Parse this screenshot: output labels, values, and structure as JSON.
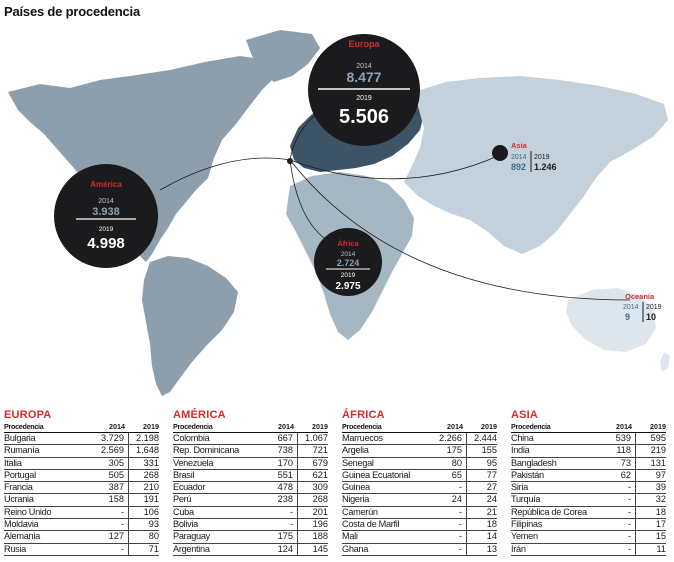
{
  "title": "Países de procedencia",
  "colors": {
    "europe": "#3d5466",
    "america": "#8d9fad",
    "africa": "#a6b7c4",
    "asia": "#c3d1dc",
    "oceania": "#dde6ed",
    "bubble": "#1b1b1d",
    "accent": "#d62b2b"
  },
  "bubbles": {
    "europa": {
      "name": "Europa",
      "label_2014": "2014",
      "value_2014": "8.477",
      "label_2019": "2019",
      "value_2019": "5.506"
    },
    "america": {
      "name": "América",
      "label_2014": "2014",
      "value_2014": "3.938",
      "label_2019": "2019",
      "value_2019": "4.998"
    },
    "africa": {
      "name": "África",
      "label_2014": "2014",
      "value_2014": "2.724",
      "label_2019": "2019",
      "value_2019": "2.975"
    },
    "asia": {
      "name": "Asia",
      "label_2014": "2014",
      "value_2014": "892",
      "label_2019": "2019",
      "value_2019": "1.246"
    },
    "oceania": {
      "name": "Oceanía",
      "label_2014": "2014",
      "value_2014": "9",
      "label_2019": "2019",
      "value_2019": "10"
    }
  },
  "tables": [
    {
      "title": "EUROPA",
      "header": {
        "name": "Procedencia",
        "y1": "2014",
        "y2": "2019"
      },
      "rows": [
        {
          "name": "Bulgaria",
          "y1": "3.729",
          "y2": "2.198"
        },
        {
          "name": "Rumanía",
          "y1": "2.569",
          "y2": "1.648"
        },
        {
          "name": "Italia",
          "y1": "305",
          "y2": "331"
        },
        {
          "name": "Portugal",
          "y1": "505",
          "y2": "268"
        },
        {
          "name": "Francia",
          "y1": "387",
          "y2": "210"
        },
        {
          "name": "Ucrania",
          "y1": "158",
          "y2": "191"
        },
        {
          "name": "Reino Unido",
          "y1": "-",
          "y2": "106"
        },
        {
          "name": "Moldavia",
          "y1": "-",
          "y2": "93"
        },
        {
          "name": "Alemania",
          "y1": "127",
          "y2": "80"
        },
        {
          "name": "Rusia",
          "y1": "-",
          "y2": "71"
        }
      ]
    },
    {
      "title": "AMÉRICA",
      "header": {
        "name": "Procedencia",
        "y1": "2014",
        "y2": "2019"
      },
      "rows": [
        {
          "name": "Colombia",
          "y1": "667",
          "y2": "1.067"
        },
        {
          "name": "Rep. Dominicana",
          "y1": "738",
          "y2": "721"
        },
        {
          "name": "Venezuela",
          "y1": "170",
          "y2": "679"
        },
        {
          "name": "Brasil",
          "y1": "551",
          "y2": "621"
        },
        {
          "name": "Ecuador",
          "y1": "478",
          "y2": "309"
        },
        {
          "name": "Perú",
          "y1": "238",
          "y2": "268"
        },
        {
          "name": "Cuba",
          "y1": "-",
          "y2": "201"
        },
        {
          "name": "Bolivia",
          "y1": "-",
          "y2": "196"
        },
        {
          "name": "Paraguay",
          "y1": "175",
          "y2": "188"
        },
        {
          "name": "Argentina",
          "y1": "124",
          "y2": "145"
        }
      ]
    },
    {
      "title": "ÁFRICA",
      "header": {
        "name": "Procedencia",
        "y1": "2014",
        "y2": "2019"
      },
      "rows": [
        {
          "name": "Marruecos",
          "y1": "2.266",
          "y2": "2.444"
        },
        {
          "name": "Argelia",
          "y1": "175",
          "y2": "155"
        },
        {
          "name": "Senegal",
          "y1": "80",
          "y2": "95"
        },
        {
          "name": "Guinea Ecuatorial",
          "y1": "65",
          "y2": "77"
        },
        {
          "name": "Guinea",
          "y1": "-",
          "y2": "27"
        },
        {
          "name": "Nigeria",
          "y1": "24",
          "y2": "24"
        },
        {
          "name": "Camerún",
          "y1": "-",
          "y2": "21"
        },
        {
          "name": "Costa de Marfil",
          "y1": "-",
          "y2": "18"
        },
        {
          "name": "Mali",
          "y1": "-",
          "y2": "14"
        },
        {
          "name": "Ghana",
          "y1": "-",
          "y2": "13"
        }
      ]
    },
    {
      "title": "ASIA",
      "header": {
        "name": "Procedencia",
        "y1": "2014",
        "y2": "2019"
      },
      "rows": [
        {
          "name": "China",
          "y1": "539",
          "y2": "595"
        },
        {
          "name": "India",
          "y1": "118",
          "y2": "219"
        },
        {
          "name": "Bangladesh",
          "y1": "73",
          "y2": "131"
        },
        {
          "name": "Pakistán",
          "y1": "62",
          "y2": "97"
        },
        {
          "name": "Siria",
          "y1": "-",
          "y2": "39"
        },
        {
          "name": "Turquía",
          "y1": "-",
          "y2": "32"
        },
        {
          "name": "República de Corea",
          "y1": "-",
          "y2": "18"
        },
        {
          "name": "Filipinas",
          "y1": "-",
          "y2": "17"
        },
        {
          "name": "Yemen",
          "y1": "-",
          "y2": "15"
        },
        {
          "name": "Irán",
          "y1": "-",
          "y2": "11"
        }
      ]
    }
  ]
}
